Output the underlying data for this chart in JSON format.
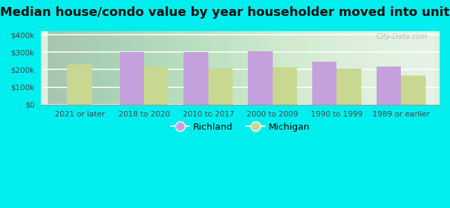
{
  "title": "Median house/condo value by year householder moved into unit",
  "categories": [
    "2021 or later",
    "2018 to 2020",
    "2010 to 2017",
    "2000 to 2009",
    "1990 to 1999",
    "1989 or earlier"
  ],
  "richland_values": [
    0,
    300000,
    300000,
    303000,
    245000,
    218000
  ],
  "michigan_values": [
    228000,
    218000,
    207000,
    213000,
    207000,
    165000
  ],
  "richland_color": "#c4a0dc",
  "michigan_color": "#c8d890",
  "background_color": "#00eeee",
  "ylabel_values": [
    0,
    100000,
    200000,
    300000,
    400000
  ],
  "ylabel_labels": [
    "$0",
    "$100k",
    "$200k",
    "$300k",
    "$400k"
  ],
  "ylim": [
    0,
    420000
  ],
  "bar_width": 0.38,
  "legend_richland": "Richland",
  "legend_michigan": "Michigan",
  "title_fontsize": 13,
  "tick_fontsize": 8,
  "legend_fontsize": 9.5,
  "watermark": "City-Data.com"
}
